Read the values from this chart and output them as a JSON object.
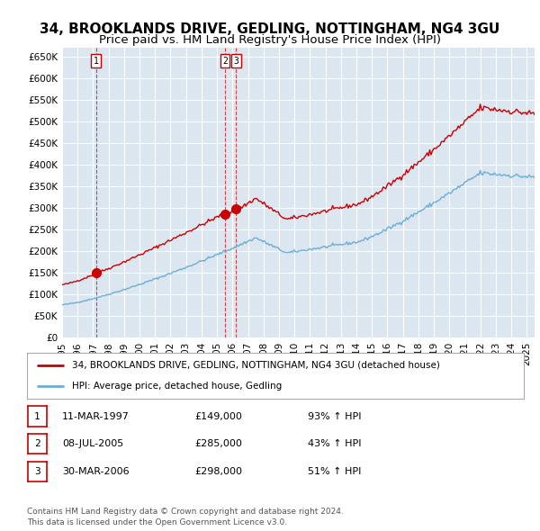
{
  "title": "34, BROOKLANDS DRIVE, GEDLING, NOTTINGHAM, NG4 3GU",
  "subtitle": "Price paid vs. HM Land Registry's House Price Index (HPI)",
  "title_fontsize": 11,
  "subtitle_fontsize": 9.5,
  "background_color": "#ffffff",
  "plot_bg_color": "#dce6f0",
  "grid_color": "#ffffff",
  "ylim": [
    0,
    670000
  ],
  "xlim_start": 1995.0,
  "xlim_end": 2025.5,
  "yticks": [
    0,
    50000,
    100000,
    150000,
    200000,
    250000,
    300000,
    350000,
    400000,
    450000,
    500000,
    550000,
    600000,
    650000
  ],
  "ytick_labels": [
    "£0",
    "£50K",
    "£100K",
    "£150K",
    "£200K",
    "£250K",
    "£300K",
    "£350K",
    "£400K",
    "£450K",
    "£500K",
    "£550K",
    "£600K",
    "£650K"
  ],
  "sale_dates": [
    1997.19,
    2005.52,
    2006.24
  ],
  "sale_prices": [
    149000,
    285000,
    298000
  ],
  "sale_labels": [
    "1",
    "2",
    "3"
  ],
  "hpi_line_color": "#6baed6",
  "price_line_color": "#cc0000",
  "sale_dot_color": "#cc0000",
  "vline_color": "#cc0000",
  "legend_price_label": "34, BROOKLANDS DRIVE, GEDLING, NOTTINGHAM, NG4 3GU (detached house)",
  "legend_hpi_label": "HPI: Average price, detached house, Gedling",
  "table_rows": [
    [
      "1",
      "11-MAR-1997",
      "£149,000",
      "93% ↑ HPI"
    ],
    [
      "2",
      "08-JUL-2005",
      "£285,000",
      "43% ↑ HPI"
    ],
    [
      "3",
      "30-MAR-2006",
      "£298,000",
      "51% ↑ HPI"
    ]
  ],
  "footnote": "Contains HM Land Registry data © Crown copyright and database right 2024.\nThis data is licensed under the Open Government Licence v3.0.",
  "xtick_years": [
    1995,
    1996,
    1997,
    1998,
    1999,
    2000,
    2001,
    2002,
    2003,
    2004,
    2005,
    2006,
    2007,
    2008,
    2009,
    2010,
    2011,
    2012,
    2013,
    2014,
    2015,
    2016,
    2017,
    2018,
    2019,
    2020,
    2021,
    2022,
    2023,
    2024,
    2025
  ]
}
